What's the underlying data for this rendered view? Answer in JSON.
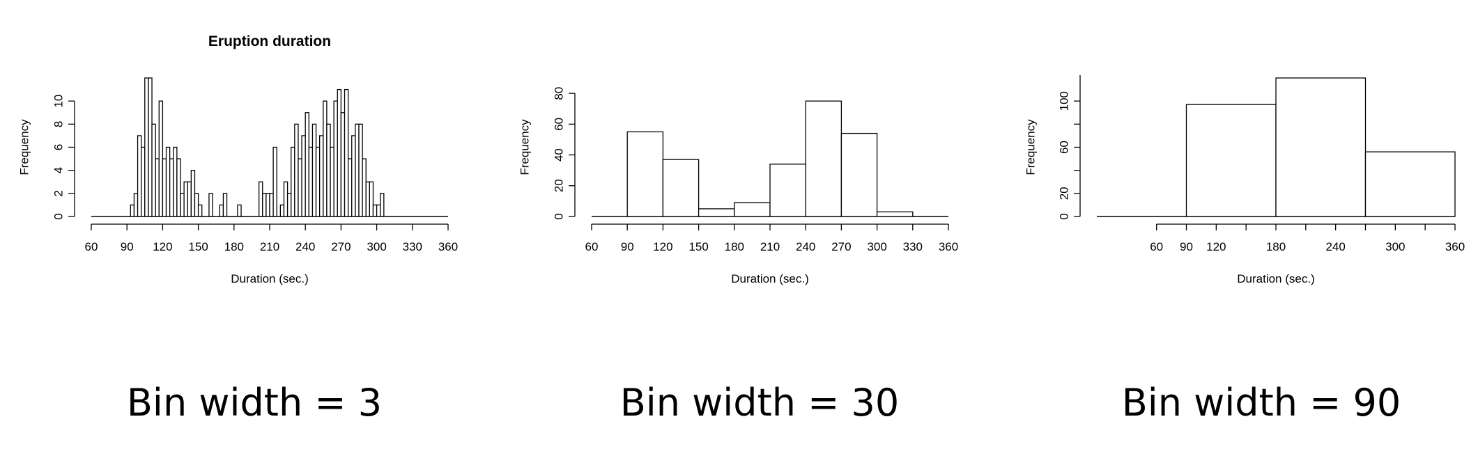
{
  "chart_data": [
    {
      "type": "bar",
      "title": "Eruption duration",
      "xlabel": "Duration (sec.)",
      "ylabel": "Frequency",
      "xlim": [
        60,
        360
      ],
      "ylim": [
        0,
        12
      ],
      "x_ticks": [
        60,
        90,
        120,
        150,
        180,
        210,
        240,
        270,
        300,
        330,
        360
      ],
      "y_ticks": [
        0,
        2,
        4,
        6,
        8,
        10
      ],
      "bin_width": 3,
      "bin_start": 93,
      "values": [
        1,
        2,
        7,
        6,
        12,
        12,
        8,
        5,
        10,
        5,
        6,
        5,
        6,
        5,
        2,
        3,
        3,
        4,
        2,
        1,
        0,
        0,
        2,
        0,
        0,
        1,
        2,
        0,
        0,
        0,
        1,
        0,
        0,
        0,
        0,
        0,
        3,
        2,
        2,
        2,
        6,
        0,
        1,
        3,
        2,
        6,
        8,
        5,
        7,
        9,
        6,
        8,
        6,
        7,
        10,
        8,
        6,
        10,
        11,
        9,
        11,
        5,
        7,
        8,
        8,
        5,
        3,
        3,
        1,
        1,
        2
      ],
      "caption": "Bin width = 3"
    },
    {
      "type": "bar",
      "title": "",
      "xlabel": "Duration (sec.)",
      "ylabel": "Frequency",
      "xlim": [
        60,
        360
      ],
      "ylim": [
        0,
        90
      ],
      "x_ticks": [
        60,
        90,
        120,
        150,
        180,
        210,
        240,
        270,
        300,
        330,
        360
      ],
      "y_ticks": [
        0,
        20,
        40,
        60,
        80
      ],
      "bin_width": 30,
      "bin_start": 90,
      "values": [
        55,
        37,
        5,
        9,
        34,
        75,
        54,
        3
      ],
      "caption": "Bin width = 30"
    },
    {
      "type": "bar",
      "title": "",
      "xlabel": "Duration (sec.)",
      "ylabel": "Frequency",
      "xlim": [
        0,
        360
      ],
      "ylim": [
        0,
        120
      ],
      "x_ticks": [
        60,
        90,
        120,
        180,
        240,
        300,
        360
      ],
      "x_minor_ticks": [
        150,
        210,
        270,
        330
      ],
      "y_ticks": [
        0,
        20,
        60,
        100
      ],
      "y_minor_ticks": [
        40,
        80
      ],
      "bin_width": 90,
      "bin_start": 90,
      "values": [
        97,
        120,
        56
      ],
      "caption": "Bin width = 90"
    }
  ]
}
